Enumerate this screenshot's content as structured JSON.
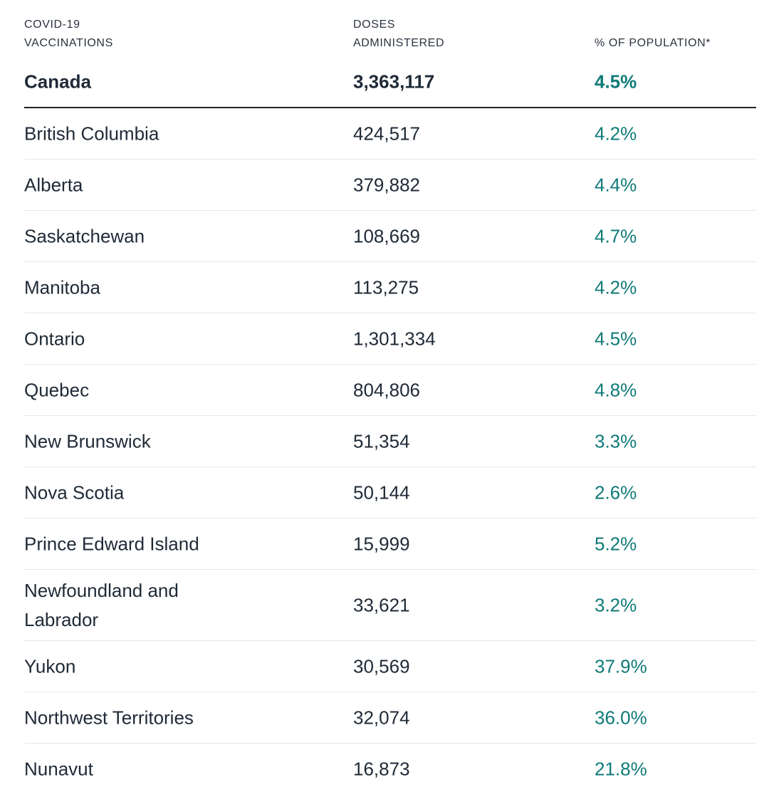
{
  "headers": {
    "col1": "COVID-19\nVACCINATIONS",
    "col2": "DOSES\nADMINISTERED",
    "col3": "% OF POPULATION*"
  },
  "total": {
    "name": "Canada",
    "doses": "3,363,117",
    "pct": "4.5%"
  },
  "rows": [
    {
      "name": "British Columbia",
      "doses": "424,517",
      "pct": "4.2%"
    },
    {
      "name": "Alberta",
      "doses": "379,882",
      "pct": "4.4%"
    },
    {
      "name": "Saskatchewan",
      "doses": "108,669",
      "pct": "4.7%"
    },
    {
      "name": "Manitoba",
      "doses": "113,275",
      "pct": "4.2%"
    },
    {
      "name": "Ontario",
      "doses": "1,301,334",
      "pct": "4.5%"
    },
    {
      "name": "Quebec",
      "doses": "804,806",
      "pct": "4.8%"
    },
    {
      "name": "New Brunswick",
      "doses": "51,354",
      "pct": "3.3%"
    },
    {
      "name": "Nova Scotia",
      "doses": "50,144",
      "pct": "2.6%"
    },
    {
      "name": "Prince Edward Island",
      "doses": "15,999",
      "pct": "5.2%"
    },
    {
      "name": "Newfoundland and Labrador",
      "doses": "33,621",
      "pct": "3.2%"
    },
    {
      "name": "Yukon",
      "doses": "30,569",
      "pct": "37.9%"
    },
    {
      "name": "Northwest Territories",
      "doses": "32,074",
      "pct": "36.0%"
    },
    {
      "name": "Nunavut",
      "doses": "16,873",
      "pct": "21.8%"
    }
  ],
  "colors": {
    "percent_accent": "#0f7a78",
    "text_primary": "#1f2a37",
    "divider": "#e5e7eb",
    "total_rule": "#222222"
  }
}
